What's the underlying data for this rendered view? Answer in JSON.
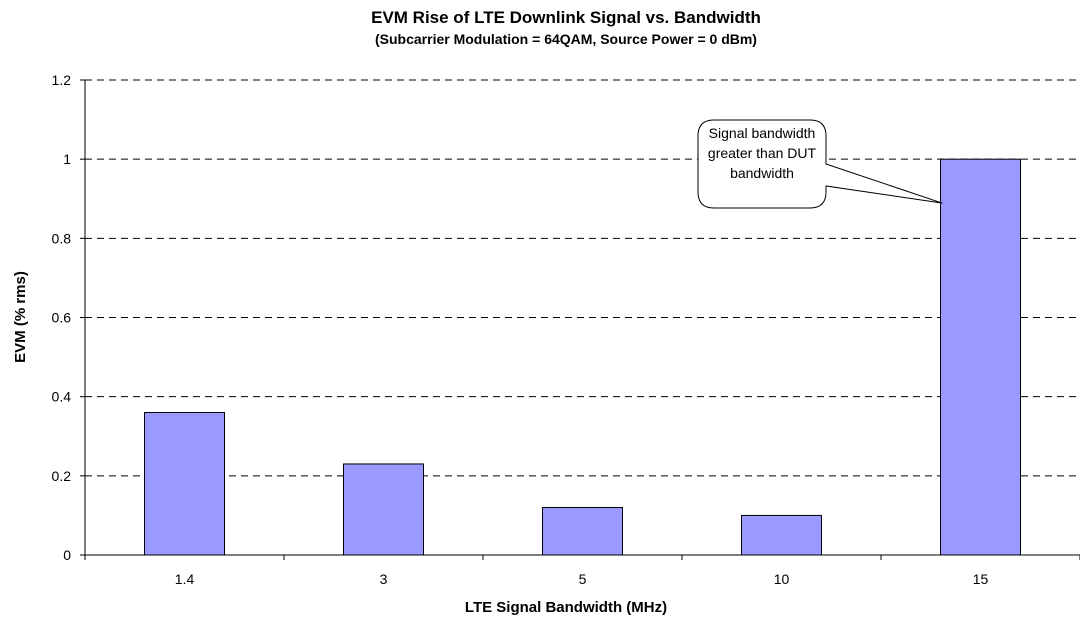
{
  "chart_data": {
    "type": "bar",
    "title": "EVM Rise of LTE Downlink Signal vs. Bandwidth",
    "subtitle": "(Subcarrier Modulation = 64QAM, Source Power = 0 dBm)",
    "xlabel": "LTE Signal Bandwidth (MHz)",
    "ylabel": "EVM (% rms)",
    "categories": [
      "1.4",
      "3",
      "5",
      "10",
      "15"
    ],
    "values": [
      0.36,
      0.23,
      0.12,
      0.1,
      1.0
    ],
    "ylim": [
      0,
      1.2
    ],
    "yticks": [
      0,
      0.2,
      0.4,
      0.6,
      0.8,
      1,
      1.2
    ],
    "ytick_labels": [
      "0",
      "0.2",
      "0.4",
      "0.6",
      "0.8",
      "1",
      "1.2"
    ],
    "grid": "horizontal dashed",
    "bar_color": "#9999ff",
    "annotation": {
      "lines": [
        "Signal bandwidth",
        "greater than DUT",
        "bandwidth"
      ],
      "target_category": "15"
    }
  }
}
